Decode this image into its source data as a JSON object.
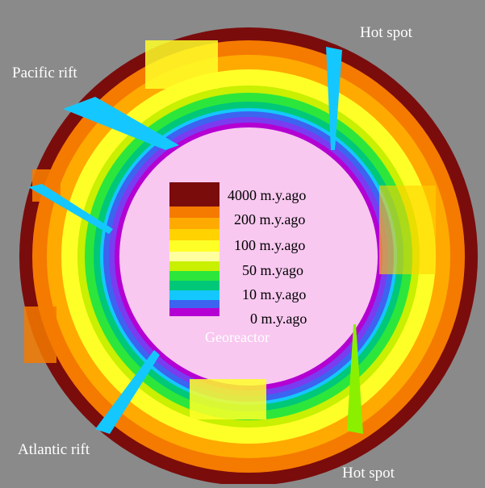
{
  "labels": {
    "hot_spot_top": "Hot spot",
    "hot_spot_bottom": "Hot spot",
    "pacific_rift": "Pacific rift",
    "atlantic_rift": "Atlantic rift",
    "core": "Georeactor"
  },
  "legend": [
    {
      "text": "4000 m.y.ago",
      "color": "#7a0c0c"
    },
    {
      "text": "200 m.y.ago",
      "color": "#f57a00"
    },
    {
      "text": "100 m.y.ago",
      "color": "#fff500"
    },
    {
      "text": "50 m.yago",
      "color": "#8af000"
    },
    {
      "text": "10 m.y.ago",
      "color": "#10c8f0"
    },
    {
      "text": "0 m.y.ago",
      "color": "#b000d0"
    }
  ],
  "colors": {
    "background": "#8a8a8a",
    "crust": "#7a0c0c",
    "orange": "#f57a00",
    "amber": "#ffaa00",
    "yellow": "#ffff28",
    "yellow_green": "#c8f000",
    "green": "#2ce63c",
    "teal": "#00c878",
    "cyan": "#14c8ff",
    "blue": "#3c64f0",
    "violet": "#7a3cf0",
    "magenta": "#b400d2",
    "core": "#f8c8f0"
  }
}
